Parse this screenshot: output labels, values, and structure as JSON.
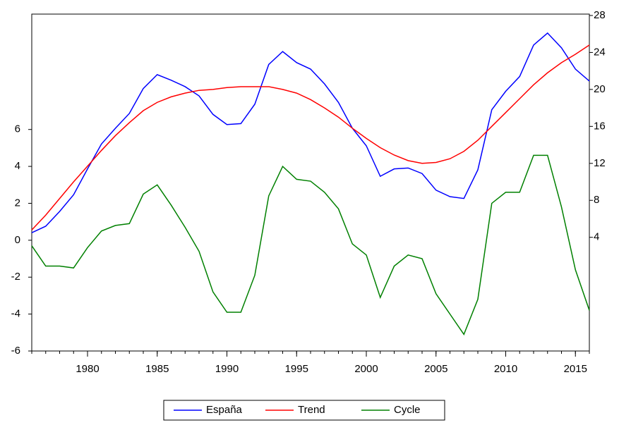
{
  "chart_data": {
    "type": "line",
    "x": [
      1976,
      1977,
      1978,
      1979,
      1980,
      1981,
      1982,
      1983,
      1984,
      1985,
      1986,
      1987,
      1988,
      1989,
      1990,
      1991,
      1992,
      1993,
      1994,
      1995,
      1996,
      1997,
      1998,
      1999,
      2000,
      2001,
      2002,
      2003,
      2004,
      2005,
      2006,
      2007,
      2008,
      2009,
      2010,
      2011,
      2012,
      2013,
      2014,
      2015,
      2016
    ],
    "xlim": [
      1976,
      2016
    ],
    "xticks": [
      1980,
      1985,
      1990,
      1995,
      2000,
      2005,
      2010,
      2015
    ],
    "ylim": [
      -6,
      12.25
    ],
    "yticks": [
      -6,
      -4,
      -2,
      0,
      2,
      4,
      6
    ],
    "y2lim": [
      -8.3,
      28.15
    ],
    "y2ticks": [
      4,
      8,
      12,
      16,
      20,
      24,
      28
    ],
    "series": [
      {
        "name": "España",
        "color": "#0000ff",
        "axis": "y2",
        "values": [
          4.5,
          5.2,
          6.8,
          8.6,
          11.4,
          14.1,
          15.8,
          17.4,
          20.1,
          21.6,
          21.0,
          20.3,
          19.3,
          17.3,
          16.2,
          16.3,
          18.4,
          22.7,
          24.1,
          22.9,
          22.2,
          20.6,
          18.6,
          15.8,
          13.9,
          10.6,
          11.4,
          11.5,
          10.9,
          9.1,
          8.4,
          8.2,
          11.3,
          17.8,
          19.8,
          21.4,
          24.8,
          26.1,
          24.5,
          22.2,
          20.9
        ]
      },
      {
        "name": "Trend",
        "color": "#ff0000",
        "axis": "y2",
        "values": [
          4.8,
          6.4,
          8.2,
          10.0,
          11.7,
          13.4,
          15.0,
          16.4,
          17.7,
          18.6,
          19.2,
          19.6,
          19.9,
          20.0,
          20.2,
          20.3,
          20.3,
          20.3,
          20.0,
          19.6,
          18.9,
          18.0,
          17.0,
          15.8,
          14.7,
          13.7,
          12.9,
          12.3,
          12.0,
          12.1,
          12.5,
          13.3,
          14.5,
          16.0,
          17.5,
          19.0,
          20.5,
          21.8,
          22.9,
          23.8,
          24.8
        ]
      },
      {
        "name": "Cycle",
        "color": "#008000",
        "axis": "y",
        "values": [
          -0.3,
          -1.4,
          -1.4,
          -1.5,
          -0.4,
          0.5,
          0.8,
          0.9,
          2.5,
          3.0,
          1.9,
          0.7,
          -0.6,
          -2.8,
          -3.9,
          -3.9,
          -1.9,
          2.4,
          4.0,
          3.3,
          3.2,
          2.6,
          1.7,
          -0.2,
          -0.8,
          -3.1,
          -1.4,
          -0.8,
          -1.0,
          -2.9,
          -4.0,
          -5.1,
          -3.2,
          2.0,
          2.6,
          2.6,
          4.6,
          4.6,
          1.8,
          -1.6,
          -3.8
        ]
      }
    ]
  }
}
